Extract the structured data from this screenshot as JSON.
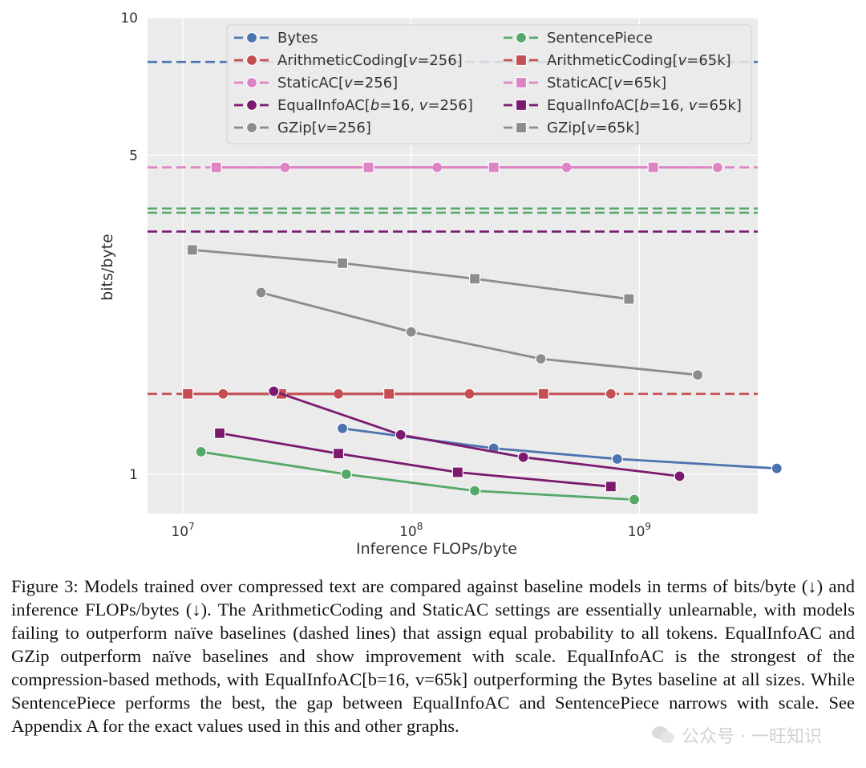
{
  "chart_data": {
    "type": "line",
    "title": "",
    "xlabel": "Inference FLOPs/byte",
    "ylabel": "bits/byte",
    "xscale": "log",
    "yscale": "log",
    "xlim": [
      7000000,
      3300000000
    ],
    "ylim": [
      0.82,
      10
    ],
    "xticks": [
      {
        "value": 10000000,
        "base": "10",
        "exp": "7"
      },
      {
        "value": 100000000,
        "base": "10",
        "exp": "8"
      },
      {
        "value": 1000000000,
        "base": "10",
        "exp": "9"
      }
    ],
    "yticks": [
      {
        "value": 1,
        "label": "1"
      },
      {
        "value": 5,
        "label": "5"
      },
      {
        "value": 10,
        "label": "10"
      }
    ],
    "grid": true,
    "legend_position": "top",
    "baselines": [
      {
        "name": "Bytes",
        "value": 8.0,
        "color": "#4c72b0"
      },
      {
        "name": "SentencePiece",
        "value": 3.82,
        "color": "#55a868"
      },
      {
        "name": "SentencePiece",
        "value": 3.74,
        "color": "#55a868"
      },
      {
        "name": "ArithmeticCoding",
        "value": 1.5,
        "color": "#c44e52"
      },
      {
        "name": "StaticAC",
        "value": 4.7,
        "color": "#dd84c5"
      },
      {
        "name": "EqualInfoAC",
        "value": 3.4,
        "color": "#7b1a6e"
      }
    ],
    "series": [
      {
        "name": "Bytes",
        "marker": "circle",
        "color": "#4c72b0",
        "x": [
          50000000,
          230000000,
          800000000,
          4000000000
        ],
        "y": [
          1.26,
          1.14,
          1.08,
          1.03
        ]
      },
      {
        "name": "SentencePiece",
        "marker": "circle",
        "color": "#55a868",
        "x": [
          12000000,
          52000000,
          190000000,
          950000000
        ],
        "y": [
          1.12,
          1.0,
          0.92,
          0.88
        ]
      },
      {
        "name": "ArithmeticCoding[v=256]",
        "marker": "circle",
        "color": "#c44e52",
        "x": [
          15000000,
          48000000,
          180000000,
          750000000
        ],
        "y": [
          1.5,
          1.5,
          1.5,
          1.5
        ]
      },
      {
        "name": "ArithmeticCoding[v=65k]",
        "marker": "square",
        "color": "#c44e52",
        "x": [
          10500000,
          27000000,
          80000000,
          380000000
        ],
        "y": [
          1.5,
          1.5,
          1.5,
          1.5
        ]
      },
      {
        "name": "StaticAC[v=256]",
        "marker": "circle",
        "color": "#dd84c5",
        "x": [
          28000000,
          130000000,
          480000000,
          2200000000
        ],
        "y": [
          4.7,
          4.7,
          4.7,
          4.7
        ]
      },
      {
        "name": "StaticAC[v=65k]",
        "marker": "square",
        "color": "#dd84c5",
        "x": [
          14000000,
          65000000,
          230000000,
          1150000000
        ],
        "y": [
          4.7,
          4.7,
          4.7,
          4.7
        ]
      },
      {
        "name": "EqualInfoAC[b=16, v=256]",
        "marker": "circle",
        "color": "#7b1a6e",
        "x": [
          25000000,
          90000000,
          310000000,
          1500000000
        ],
        "y": [
          1.52,
          1.22,
          1.09,
          0.99
        ]
      },
      {
        "name": "EqualInfoAC[b=16, v=65k]",
        "marker": "square",
        "color": "#7b1a6e",
        "x": [
          14500000,
          48000000,
          160000000,
          750000000
        ],
        "y": [
          1.23,
          1.11,
          1.01,
          0.94
        ]
      },
      {
        "name": "GZip[v=256]",
        "marker": "circle",
        "color": "#8c8c8c",
        "x": [
          22000000,
          100000000,
          370000000,
          1800000000
        ],
        "y": [
          2.5,
          2.05,
          1.79,
          1.65
        ]
      },
      {
        "name": "GZip[v=65k]",
        "marker": "square",
        "color": "#8c8c8c",
        "x": [
          11000000,
          50000000,
          190000000,
          900000000
        ],
        "y": [
          3.1,
          2.9,
          2.68,
          2.42
        ]
      }
    ],
    "legend": [
      {
        "prefix": "Bytes",
        "var": "",
        "suffix": "",
        "color": "#4c72b0",
        "marker": "circle"
      },
      {
        "prefix": "SentencePiece",
        "var": "",
        "suffix": "",
        "color": "#55a868",
        "marker": "circle"
      },
      {
        "prefix": "ArithmeticCoding[",
        "var": "v",
        "suffix": "=256]",
        "color": "#c44e52",
        "marker": "circle"
      },
      {
        "prefix": "ArithmeticCoding[",
        "var": "v",
        "suffix": "=65k]",
        "color": "#c44e52",
        "marker": "square"
      },
      {
        "prefix": "StaticAC[",
        "var": "v",
        "suffix": "=256]",
        "color": "#dd84c5",
        "marker": "circle"
      },
      {
        "prefix": "StaticAC[",
        "var": "v",
        "suffix": "=65k]",
        "color": "#dd84c5",
        "marker": "square"
      },
      {
        "prefix": "EqualInfoAC[",
        "var": "b",
        "suffix": "=16, ",
        "var2": "v",
        "suffix2": "=256]",
        "color": "#7b1a6e",
        "marker": "circle"
      },
      {
        "prefix": "EqualInfoAC[",
        "var": "b",
        "suffix": "=16, ",
        "var2": "v",
        "suffix2": "=65k]",
        "color": "#7b1a6e",
        "marker": "square"
      },
      {
        "prefix": "GZip[",
        "var": "v",
        "suffix": "=256]",
        "color": "#8c8c8c",
        "marker": "circle"
      },
      {
        "prefix": "GZip[",
        "var": "v",
        "suffix": "=65k]",
        "color": "#8c8c8c",
        "marker": "square"
      }
    ]
  },
  "caption": {
    "text": "Figure 3: Models trained over compressed text are compared against baseline models in terms of bits/byte (↓) and inference FLOPs/bytes (↓). The ArithmeticCoding and StaticAC settings are essentially unlearnable, with models failing to outperform naïve baselines (dashed lines) that assign equal probability to all tokens. EqualInfoAC and GZip outperform naïve baselines and show improvement with scale. EqualInfoAC is the strongest of the compression-based methods, with EqualInfoAC[b=16, v=65k] outperforming the Bytes baseline at all sizes. While SentencePiece performs the best, the gap between EqualInfoAC and SentencePiece narrows with scale. See Appendix A for the exact values used in this and other graphs."
  },
  "watermark": {
    "text": "公众号 · 一旺知识",
    "icon": "wechat-icon"
  }
}
